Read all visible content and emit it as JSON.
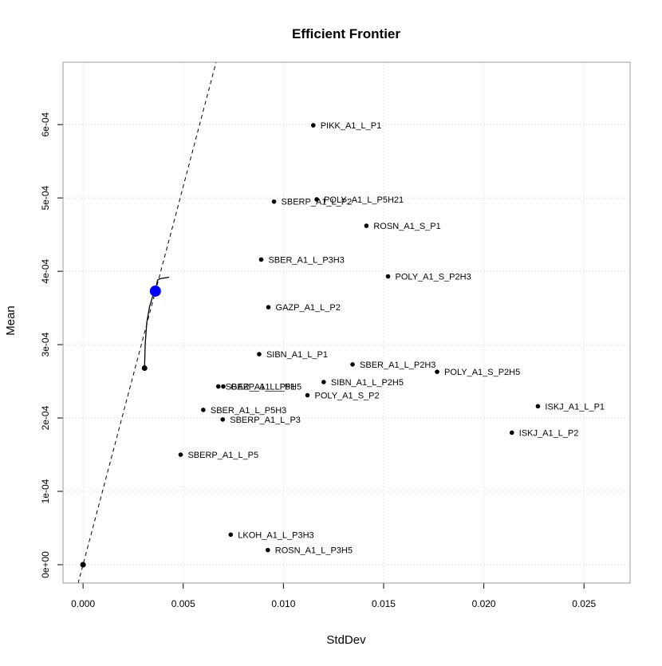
{
  "chart_data": {
    "type": "scatter",
    "title": "Efficient Frontier",
    "xlabel": "StdDev",
    "ylabel": "Mean",
    "xlim": [
      -0.001,
      0.0273
    ],
    "ylim": [
      -2.5e-05,
      0.000685
    ],
    "x_ticks": [
      0.0,
      0.005,
      0.01,
      0.015,
      0.02,
      0.025
    ],
    "x_tick_labels": [
      "0.000",
      "0.005",
      "0.010",
      "0.015",
      "0.020",
      "0.025"
    ],
    "y_ticks": [
      0,
      0.0001,
      0.0002,
      0.0003,
      0.0004,
      0.0005,
      0.0006
    ],
    "y_tick_labels": [
      "0e+00",
      "1e-04",
      "2e-04",
      "3e-04",
      "4e-04",
      "5e-04",
      "6e-04"
    ],
    "grid": true,
    "colors": {
      "points": "#000000",
      "tangency": "#0000ff",
      "grid": "#d3d3d3",
      "frame": "#999999"
    },
    "assets": [
      {
        "name": "PIKK_A1_L_P1",
        "x": 0.01149,
        "y": 0.000599
      },
      {
        "name": "POLY_A1_L_P5H21",
        "x": 0.01166,
        "y": 0.000498
      },
      {
        "name": "SBERP_A1_L_P2",
        "x": 0.00953,
        "y": 0.000495
      },
      {
        "name": "ROSN_A1_S_P1",
        "x": 0.01414,
        "y": 0.000462
      },
      {
        "name": "SBER_A1_L_P3H3",
        "x": 0.00889,
        "y": 0.000416
      },
      {
        "name": "POLY_A1_S_P2H3",
        "x": 0.01522,
        "y": 0.000393
      },
      {
        "name": "GAZP_A1_L_P2",
        "x": 0.00925,
        "y": 0.000351
      },
      {
        "name": "SIBN_A1_L_P1",
        "x": 0.00879,
        "y": 0.000287
      },
      {
        "name": "SBER_A1_L_P2H3",
        "x": 0.01345,
        "y": 0.000273
      },
      {
        "name": "POLY_A1_S_P2H5",
        "x": 0.01767,
        "y": 0.000263
      },
      {
        "name": "SIBN_A1_L_P2H5",
        "x": 0.01201,
        "y": 0.000249
      },
      {
        "name": "SBER_A1_L_P5H5",
        "x": 0.00675,
        "y": 0.000243
      },
      {
        "name": "GAZP_A1_L_P1",
        "x": 0.007,
        "y": 0.000243
      },
      {
        "name": "POLY_A1_S_P2",
        "x": 0.0112,
        "y": 0.000231
      },
      {
        "name": "ISKJ_A1_L_P1",
        "x": 0.0227,
        "y": 0.000216
      },
      {
        "name": "SBER_A1_L_P5H3",
        "x": 0.006,
        "y": 0.000211
      },
      {
        "name": "SBERP_A1_L_P3",
        "x": 0.00697,
        "y": 0.000198
      },
      {
        "name": "ISKJ_A1_L_P2",
        "x": 0.0214,
        "y": 0.00018
      },
      {
        "name": "SBERP_A1_L_P5",
        "x": 0.00487,
        "y": 0.00015
      },
      {
        "name": "LKOH_A1_L_P3H3",
        "x": 0.00737,
        "y": 4.1e-05
      },
      {
        "name": "ROSN_A1_L_P3H5",
        "x": 0.00922,
        "y": 2e-05
      }
    ],
    "frontier": [
      {
        "x": 0.00307,
        "y": 0.000268
      },
      {
        "x": 0.0031,
        "y": 0.0003
      },
      {
        "x": 0.00318,
        "y": 0.00033
      },
      {
        "x": 0.00332,
        "y": 0.000352
      },
      {
        "x": 0.0035,
        "y": 0.000368
      },
      {
        "x": 0.00362,
        "y": 0.000375
      },
      {
        "x": 0.00372,
        "y": 0.000388
      },
      {
        "x": 0.00385,
        "y": 0.00039
      },
      {
        "x": 0.0043,
        "y": 0.000392
      }
    ],
    "min_variance_point": {
      "x": 0.00307,
      "y": 0.000268
    },
    "risk_free_point": {
      "x": 0.0,
      "y": 0.0
    },
    "tangency_point": {
      "x": 0.00361,
      "y": 0.000373
    },
    "capital_market_line": {
      "x0": -0.00025,
      "y0": -2.58e-05,
      "x1": 0.00667,
      "y1": 0.000688
    }
  }
}
